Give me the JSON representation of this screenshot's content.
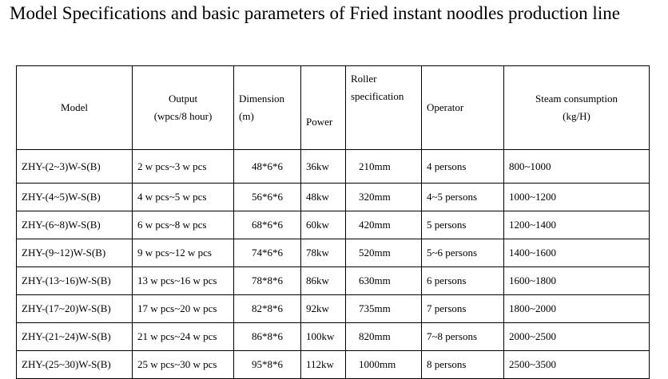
{
  "title": "Model Specifications and basic parameters of Fried instant noodles production line",
  "table": {
    "header": [
      [
        "Model"
      ],
      [
        "Output",
        "(wpcs/8 hour)"
      ],
      [
        "Dimension",
        "(m)"
      ],
      [
        "Power"
      ],
      [
        "Roller",
        "specification"
      ],
      [
        "Operator"
      ],
      [
        "Steam consumption",
        "(kg/H)"
      ]
    ],
    "rows": [
      [
        "ZHY-(2~3)W-S(B)",
        "2 w pcs~3 w pcs",
        "48*6*6",
        "36kw",
        "210mm",
        "4 persons",
        "800~1000"
      ],
      [
        "ZHY-(4~5)W-S(B)",
        "4 w pcs~5 w pcs",
        "56*6*6",
        "48kw",
        "320mm",
        "4~5 persons",
        "1000~1200"
      ],
      [
        "ZHY-(6~8)W-S(B)",
        "6 w pcs~8 w pcs",
        "68*6*6",
        "60kw",
        "420mm",
        "5 persons",
        "1200~1400"
      ],
      [
        "ZHY-(9~12)W-S(B)",
        "9 w pcs~12 w pcs",
        "74*6*6",
        "78kw",
        "520mm",
        "5~6 persons",
        "1400~1600"
      ],
      [
        "ZHY-(13~16)W-S(B)",
        "13 w pcs~16 w pcs",
        "78*8*6",
        "86kw",
        "630mm",
        "6 persons",
        "1600~1800"
      ],
      [
        "ZHY-(17~20)W-S(B)",
        "17 w pcs~20 w pcs",
        "82*8*6",
        "92kw",
        "735mm",
        "7 persons",
        "1800~2000"
      ],
      [
        "ZHY-(21~24)W-S(B)",
        "21 w pcs~24 w pcs",
        "86*8*6",
        "100kw",
        "820mm",
        "7~8 persons",
        "2000~2500"
      ],
      [
        "ZHY-(25~30)W-S(B)",
        "25 w pcs~30 w pcs",
        "95*8*6",
        "112kw",
        "1000mm",
        "8 persons",
        "2500~3500"
      ]
    ]
  }
}
